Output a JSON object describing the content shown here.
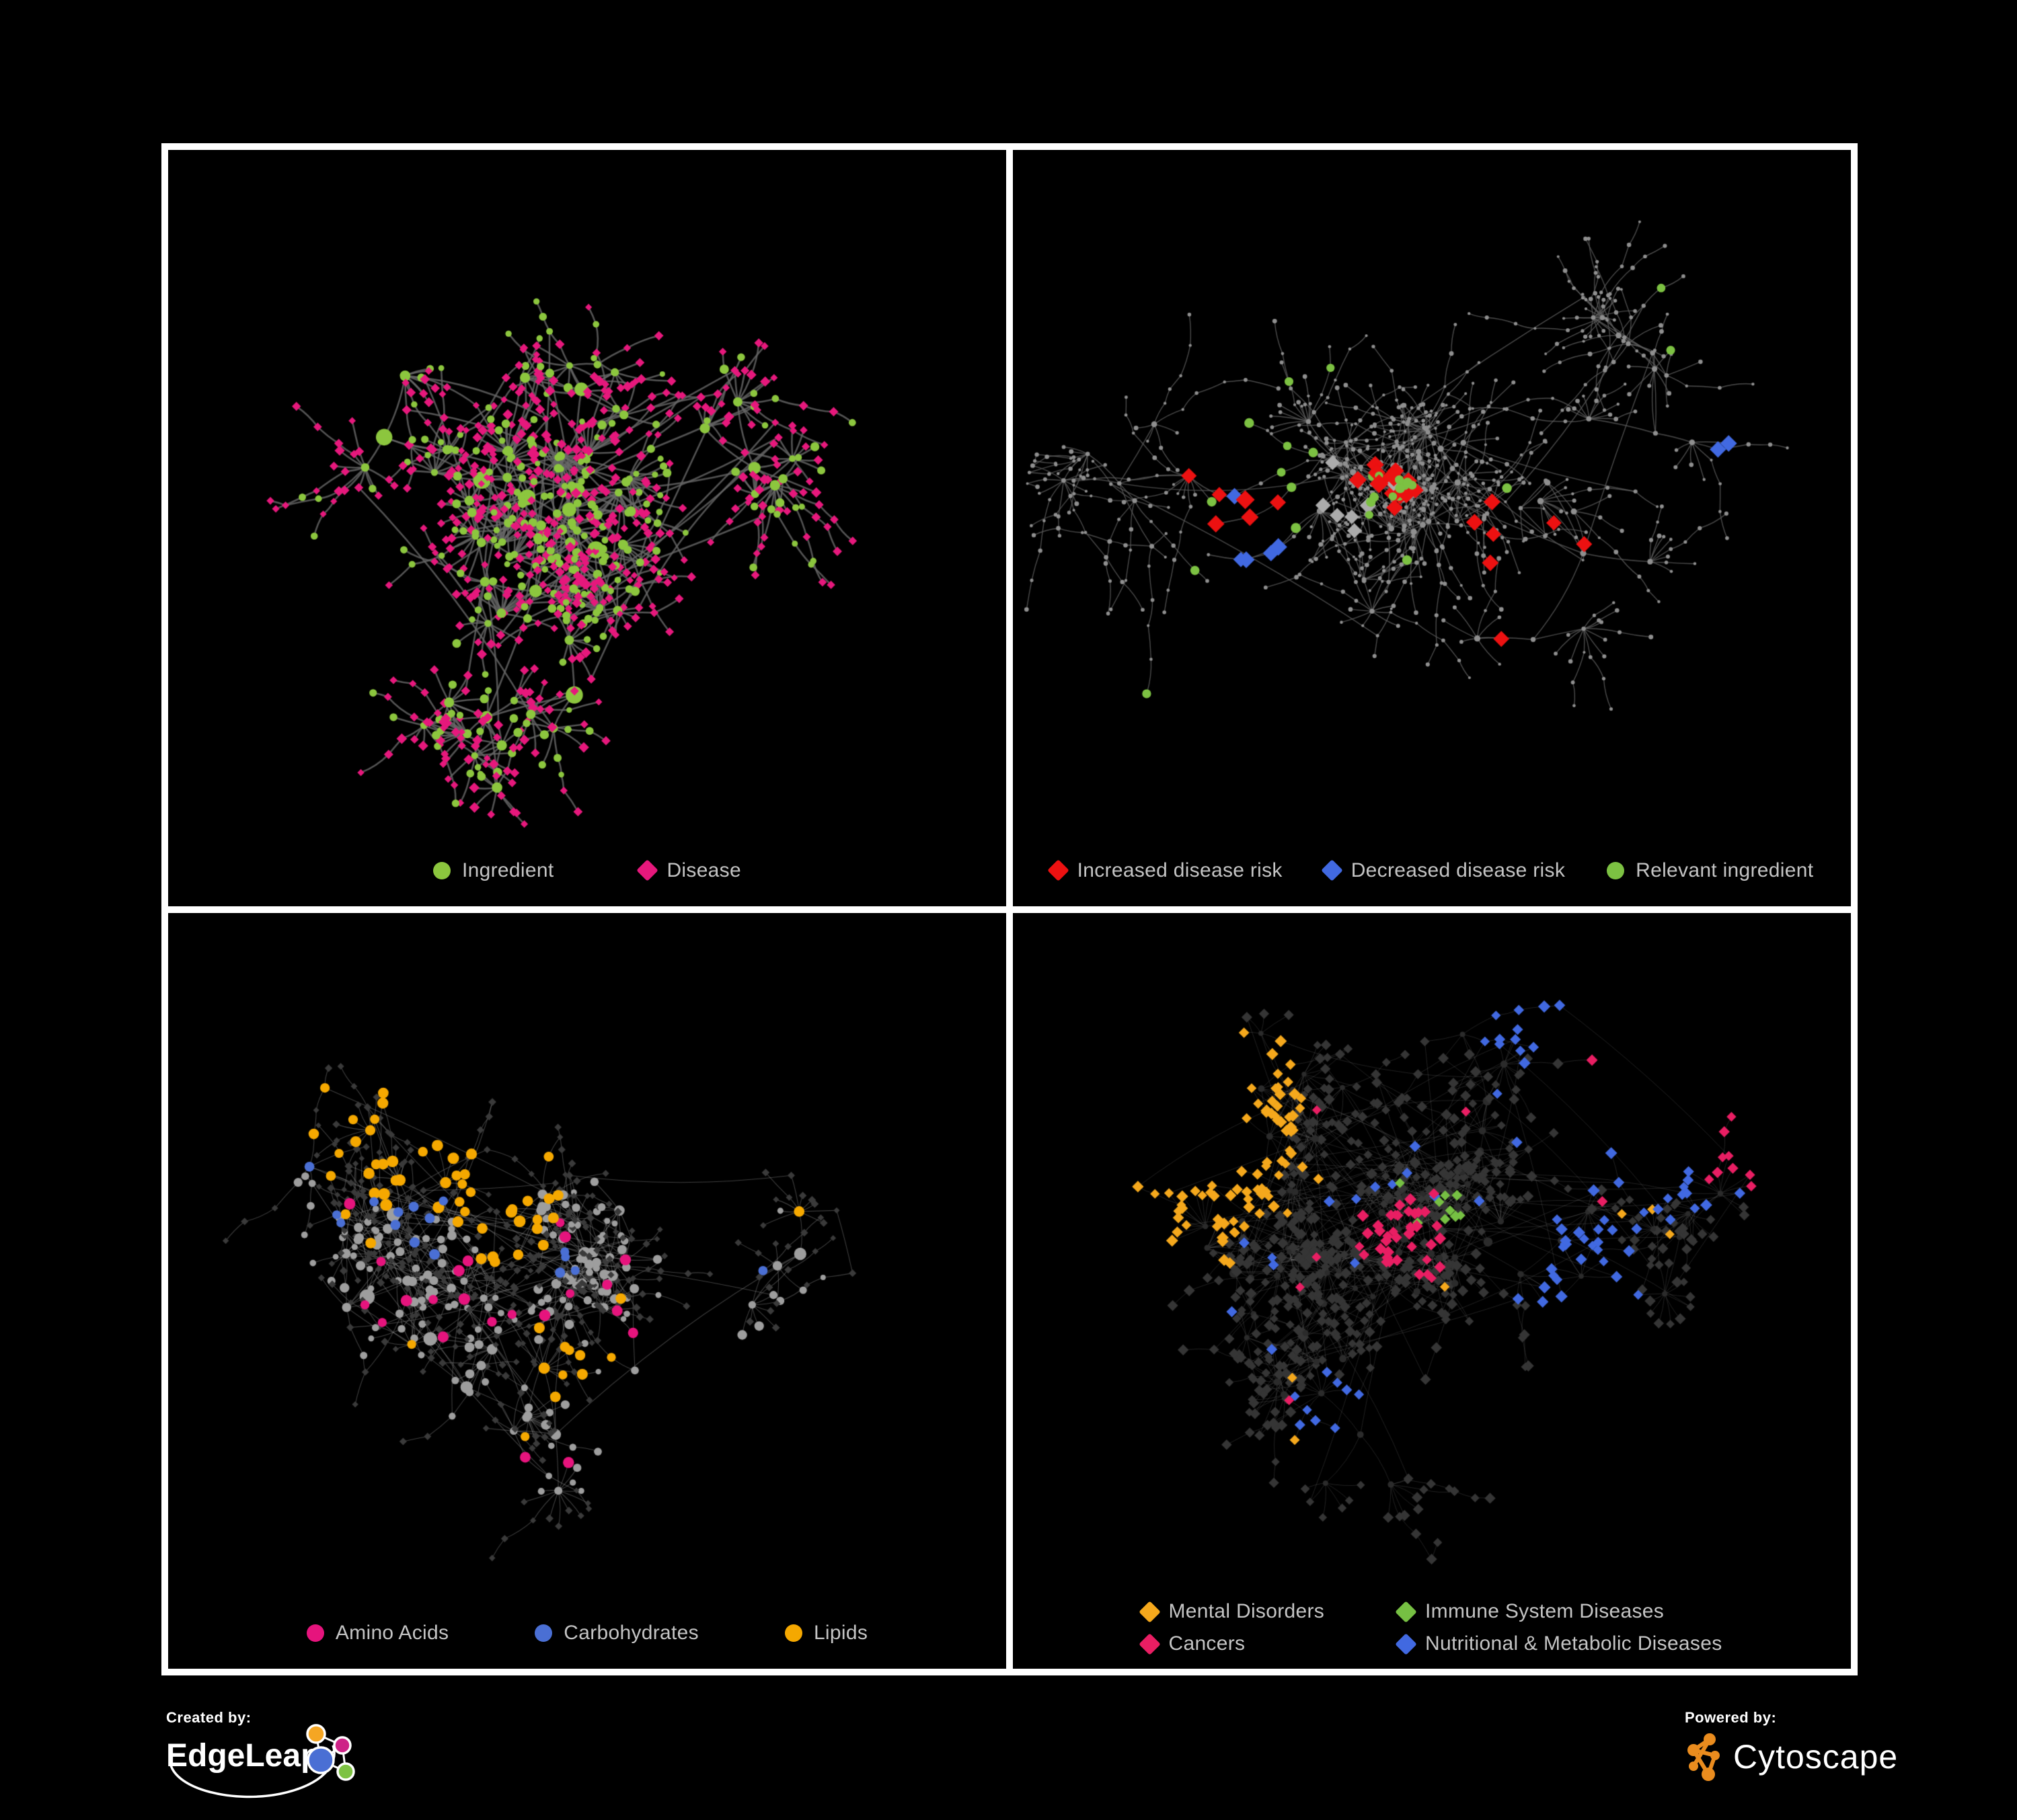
{
  "page": {
    "background": "#000000",
    "frame_color": "#FFFFFF",
    "legend_text_color": "#C4C4C4"
  },
  "panels": [
    {
      "id": "ingredient-disease",
      "legend": [
        {
          "label": "Ingredient",
          "shape": "circle",
          "color": "#8CC63E"
        },
        {
          "label": "Disease",
          "shape": "diamond",
          "color": "#E6187C"
        }
      ],
      "network": {
        "edge_color": "#686868",
        "colors": {
          "ingredient": "#8CC63E",
          "disease": "#E6187C"
        }
      }
    },
    {
      "id": "disease-risk",
      "legend": [
        {
          "label": "Increased disease risk",
          "shape": "diamond",
          "color": "#EC1111"
        },
        {
          "label": "Decreased disease risk",
          "shape": "diamond",
          "color": "#4169E1"
        },
        {
          "label": "Relevant ingredient",
          "shape": "circle",
          "color": "#7CC142"
        }
      ],
      "network": {
        "edge_color": "#5E5E5E",
        "colors": {
          "node": "#8F8F8F",
          "increased": "#EC1111",
          "decreased": "#4169E1",
          "neutral": "#ABABAB",
          "ingredient": "#7CC142"
        }
      }
    },
    {
      "id": "nutrient-classes",
      "legend": [
        {
          "label": "Amino Acids",
          "shape": "circle",
          "color": "#E6147D"
        },
        {
          "label": "Carbohydrates",
          "shape": "circle",
          "color": "#4A6FD4"
        },
        {
          "label": "Lipids",
          "shape": "circle",
          "color": "#F5A800"
        }
      ],
      "network": {
        "edge_color": "#9A9A9A",
        "colors": {
          "ingredient": "#9E9E9E",
          "disease": "#3A3A3A",
          "amino": "#E6147D",
          "carb": "#4A6FD4",
          "lipid": "#F5A800"
        }
      }
    },
    {
      "id": "disease-classes",
      "legend": [
        {
          "label": "Mental Disorders",
          "shape": "diamond",
          "color": "#F5A81C"
        },
        {
          "label": "Immune System Diseases",
          "shape": "diamond",
          "color": "#76C043"
        },
        {
          "label": "Cancers",
          "shape": "diamond",
          "color": "#E91E63"
        },
        {
          "label": "Nutritional & Metabolic Diseases",
          "shape": "diamond",
          "color": "#4169E1"
        }
      ],
      "network": {
        "edge_color": "#BDBDBD",
        "colors": {
          "disease": "#353535",
          "ingredient": "#2B2B2B",
          "mental": "#F5A81C",
          "immune": "#76C043",
          "cancer": "#E91E63",
          "nutritional": "#4169E1"
        }
      }
    }
  ],
  "footer": {
    "created_by_label": "Created by:",
    "created_by_brand": "EdgeLeap",
    "edgeleap_colors": {
      "orange": "#F5A623",
      "magenta": "#CE2387",
      "blue": "#4A6FD4",
      "green": "#7DC242",
      "stroke": "#FFFFFF"
    },
    "powered_by_label": "Powered by:",
    "powered_by_brand": "Cytoscape",
    "cytoscape_color": "#EA8C1E"
  }
}
